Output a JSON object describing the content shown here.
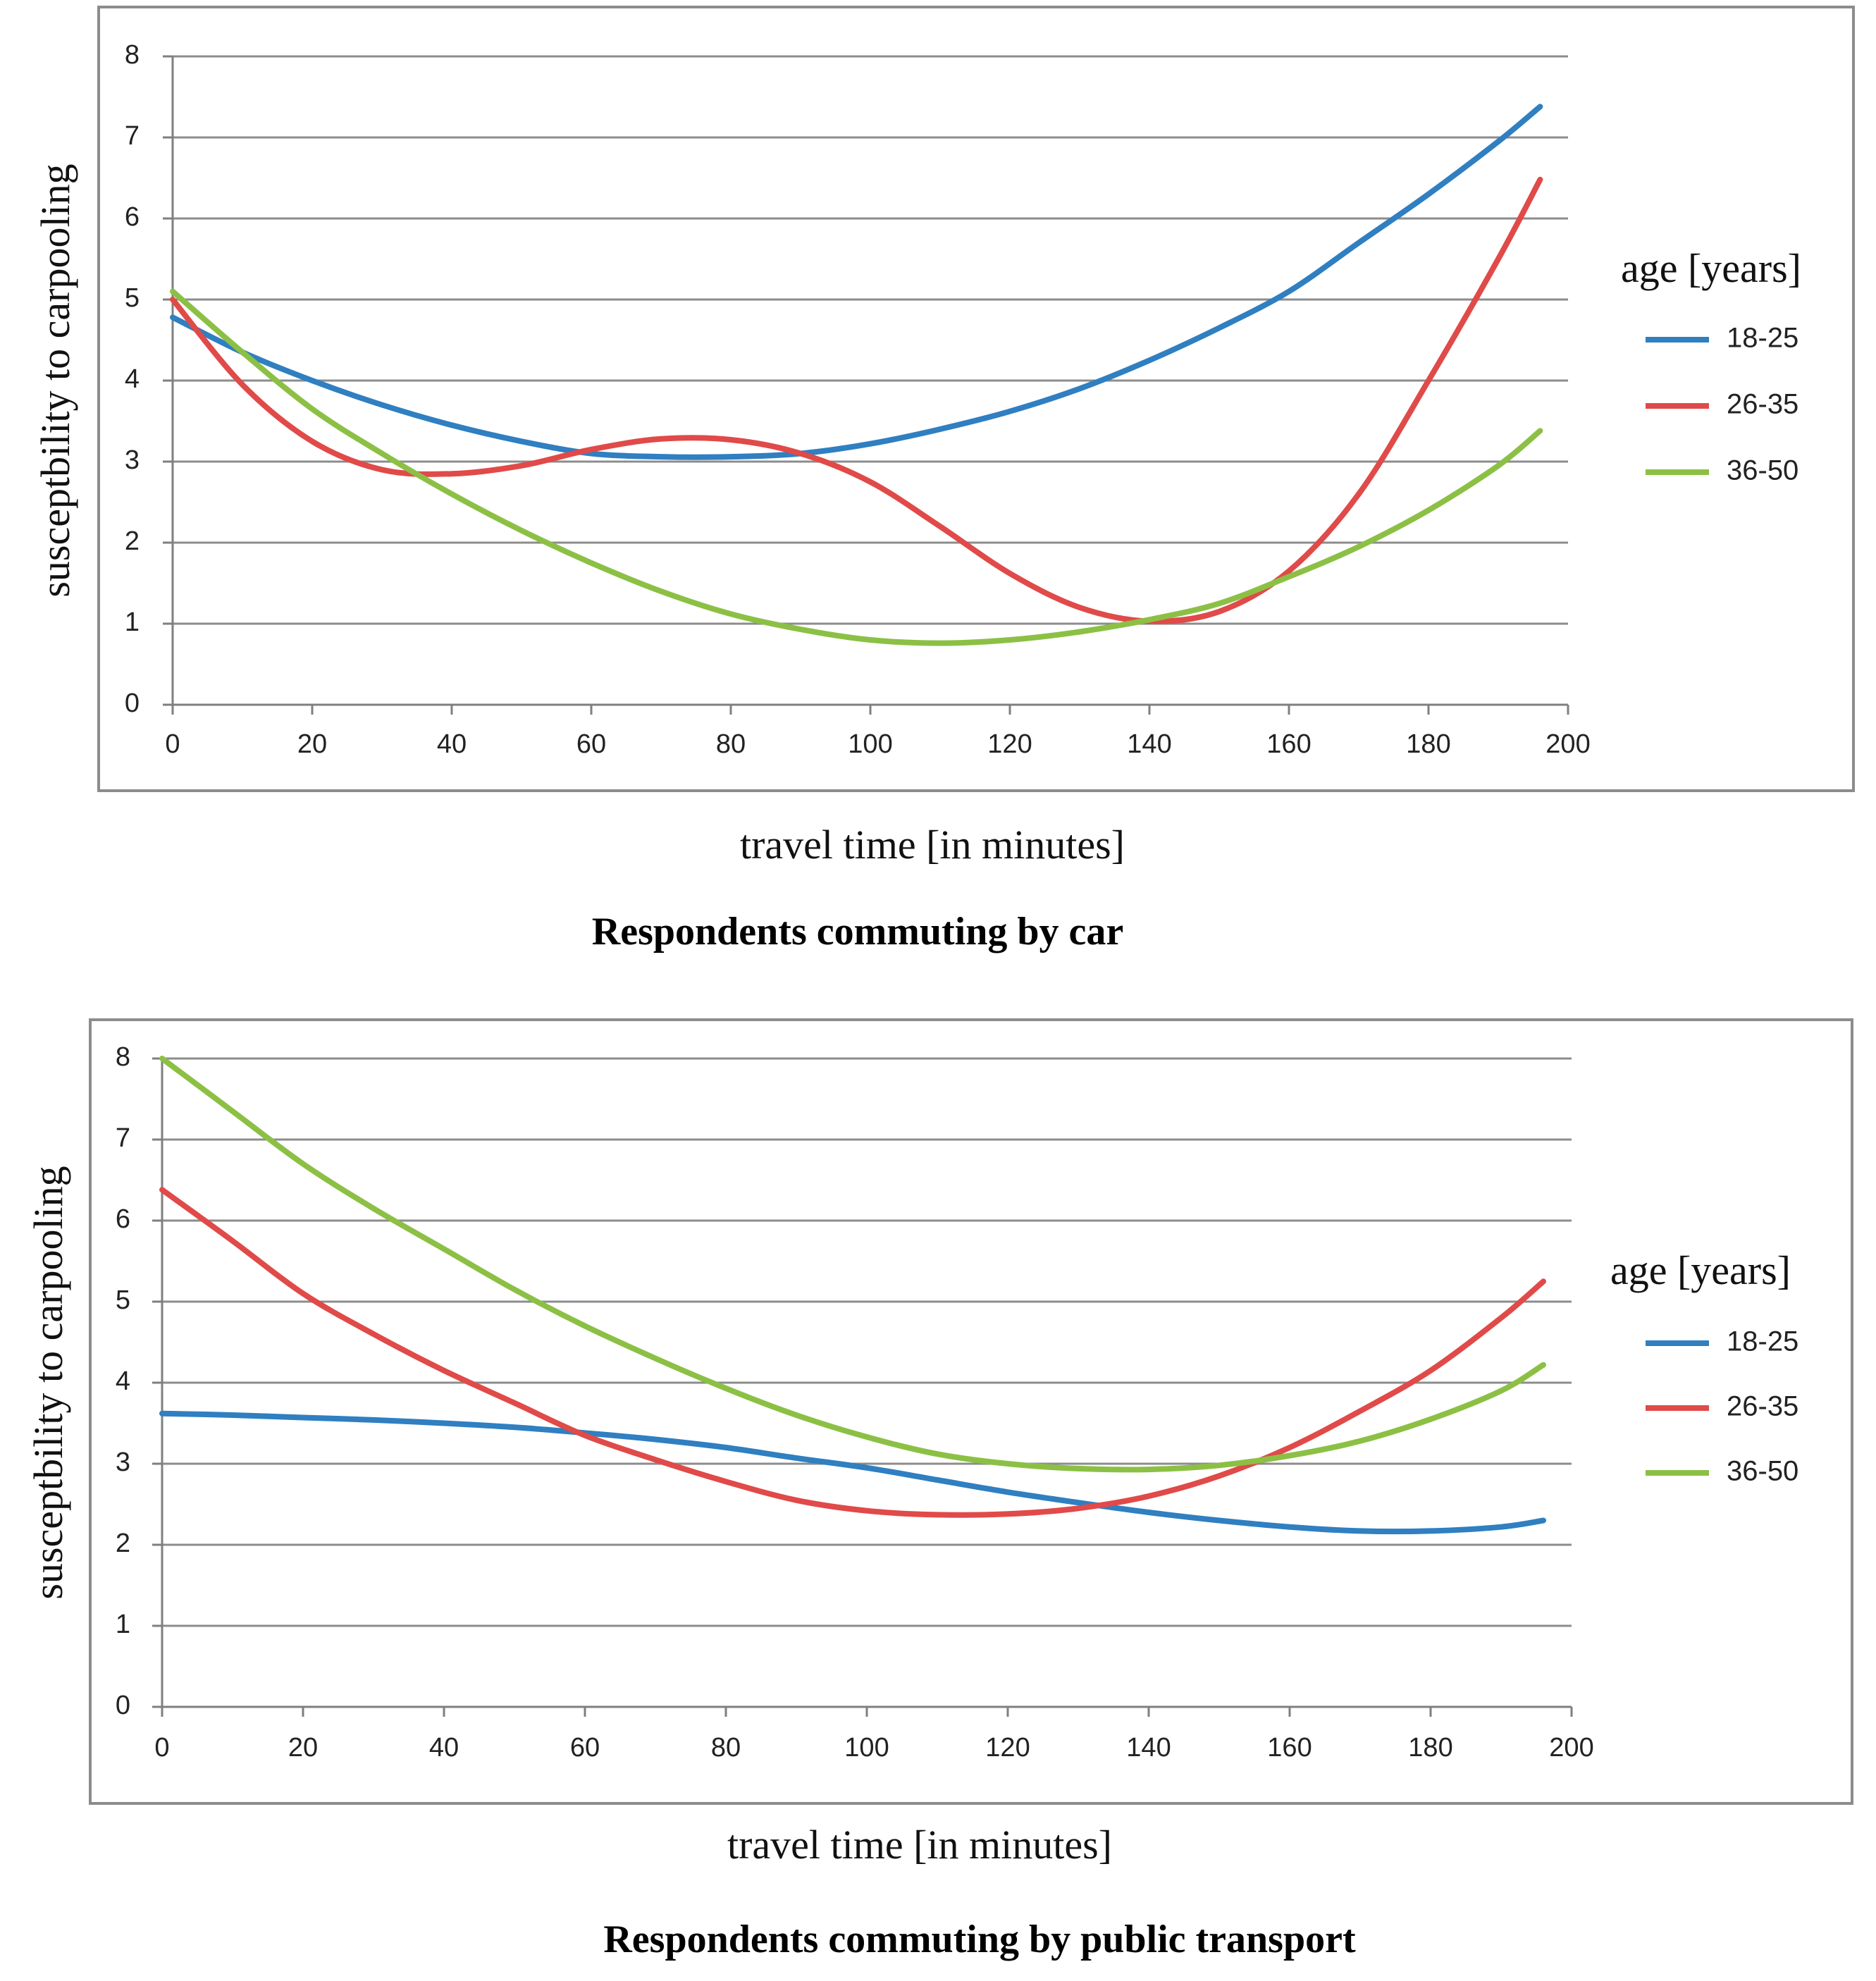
{
  "colors": {
    "age_18_25": "#2f7fc1",
    "age_26_35": "#e04a49",
    "age_36_50": "#8cc045",
    "gridline": "#8c8c8c",
    "frame": "#8c8c8c",
    "axis": "#7f7f7f"
  },
  "chart_data": [
    {
      "type": "line",
      "title": "Respondents commuting by car",
      "xlabel": "travel time [in minutes]",
      "ylabel": "susceptbility to carpooling",
      "xlim": [
        0,
        200
      ],
      "ylim": [
        0,
        8
      ],
      "x_ticks": [
        "0",
        "20",
        "40",
        "60",
        "80",
        "100",
        "120",
        "140",
        "160",
        "180",
        "200"
      ],
      "y_ticks": [
        "0",
        "1",
        "2",
        "3",
        "4",
        "5",
        "6",
        "7",
        "8"
      ],
      "grid": true,
      "legend_position": "right",
      "legend_title": "age [years]",
      "x": [
        0,
        10,
        20,
        30,
        40,
        50,
        60,
        70,
        80,
        90,
        100,
        110,
        120,
        130,
        140,
        150,
        160,
        170,
        180,
        190,
        196
      ],
      "series": [
        {
          "name": "18-25",
          "color": "#2f7fc1",
          "values": [
            4.78,
            4.35,
            4.0,
            3.7,
            3.45,
            3.25,
            3.1,
            3.06,
            3.06,
            3.1,
            3.22,
            3.4,
            3.62,
            3.9,
            4.25,
            4.65,
            5.1,
            5.7,
            6.3,
            6.95,
            7.38
          ]
        },
        {
          "name": "26-35",
          "color": "#e04a49",
          "values": [
            5.0,
            3.95,
            3.25,
            2.9,
            2.85,
            2.95,
            3.15,
            3.28,
            3.27,
            3.1,
            2.75,
            2.2,
            1.62,
            1.2,
            1.03,
            1.15,
            1.65,
            2.6,
            4.0,
            5.5,
            6.48
          ]
        },
        {
          "name": "36-50",
          "color": "#8cc045",
          "values": [
            5.1,
            4.35,
            3.65,
            3.1,
            2.6,
            2.15,
            1.75,
            1.4,
            1.12,
            0.93,
            0.8,
            0.76,
            0.8,
            0.9,
            1.05,
            1.25,
            1.58,
            1.95,
            2.4,
            2.95,
            3.38
          ]
        }
      ]
    },
    {
      "type": "line",
      "title": "Respondents commuting by public transport",
      "xlabel": "travel time [in minutes]",
      "ylabel": "susceptbility to carpooling",
      "xlim": [
        0,
        200
      ],
      "ylim": [
        0,
        8
      ],
      "x_ticks": [
        "0",
        "20",
        "40",
        "60",
        "80",
        "100",
        "120",
        "140",
        "160",
        "180",
        "200"
      ],
      "y_ticks": [
        "0",
        "1",
        "2",
        "3",
        "4",
        "5",
        "6",
        "7",
        "8"
      ],
      "grid": true,
      "legend_position": "right",
      "legend_title": "age [years]",
      "x": [
        0,
        10,
        20,
        30,
        40,
        50,
        60,
        70,
        80,
        90,
        100,
        110,
        120,
        130,
        140,
        150,
        160,
        170,
        180,
        190,
        196
      ],
      "series": [
        {
          "name": "18-25",
          "color": "#2f7fc1",
          "values": [
            3.62,
            3.6,
            3.57,
            3.54,
            3.5,
            3.45,
            3.38,
            3.3,
            3.2,
            3.07,
            2.95,
            2.8,
            2.65,
            2.52,
            2.4,
            2.3,
            2.22,
            2.17,
            2.17,
            2.22,
            2.3
          ]
        },
        {
          "name": "26-35",
          "color": "#e04a49",
          "values": [
            6.38,
            5.75,
            5.1,
            4.6,
            4.15,
            3.75,
            3.35,
            3.05,
            2.78,
            2.55,
            2.42,
            2.37,
            2.38,
            2.45,
            2.6,
            2.85,
            3.2,
            3.65,
            4.15,
            4.8,
            5.25
          ]
        },
        {
          "name": "36-50",
          "color": "#8cc045",
          "values": [
            8.0,
            7.35,
            6.7,
            6.15,
            5.65,
            5.15,
            4.7,
            4.3,
            3.93,
            3.6,
            3.33,
            3.12,
            3.0,
            2.94,
            2.93,
            2.98,
            3.1,
            3.28,
            3.55,
            3.9,
            4.22
          ]
        }
      ]
    }
  ]
}
